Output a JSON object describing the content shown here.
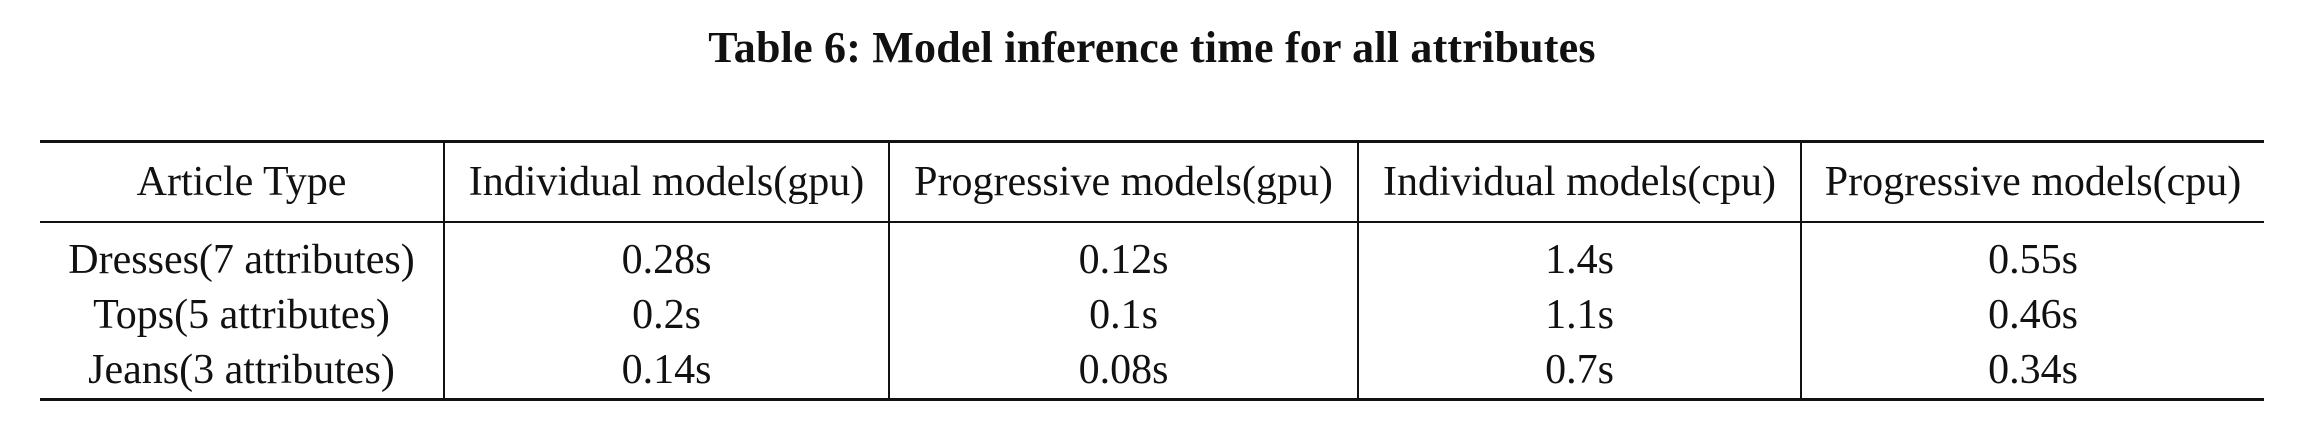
{
  "caption": "Table 6: Model inference time for all attributes",
  "table": {
    "headers": [
      "Article Type",
      "Individual models(gpu)",
      "Progressive models(gpu)",
      "Individual models(cpu)",
      "Progressive models(cpu)"
    ],
    "rows": [
      [
        "Dresses(7 attributes)",
        "0.28s",
        "0.12s",
        "1.4s",
        "0.55s"
      ],
      [
        "Tops(5 attributes)",
        "0.2s",
        "0.1s",
        "1.1s",
        "0.46s"
      ],
      [
        "Jeans(3 attributes)",
        "0.14s",
        "0.08s",
        "0.7s",
        "0.34s"
      ]
    ]
  }
}
